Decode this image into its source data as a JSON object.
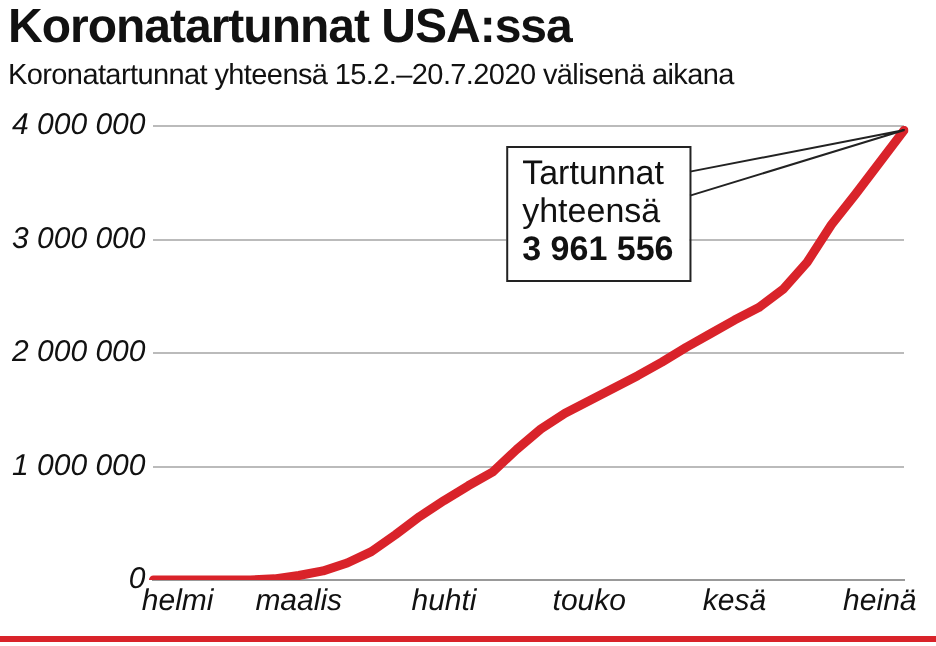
{
  "chart_data": {
    "type": "line",
    "title": "Koronatartunnat USA:ssa",
    "subtitle": "Koronatartunnat yhteensä 15.2.–20.7.2020 välisenä aikana",
    "categories": [
      null,
      "helmi",
      null,
      null,
      null,
      null,
      "maalis",
      null,
      null,
      null,
      null,
      null,
      "huhti",
      null,
      null,
      null,
      null,
      null,
      "touko",
      null,
      null,
      null,
      null,
      null,
      "kesä",
      null,
      null,
      null,
      null,
      null,
      "heinä",
      null
    ],
    "series": [
      {
        "color": "#d9232a",
        "values": [
          0,
          0,
          0,
          0,
          0,
          10000,
          40000,
          80000,
          150000,
          250000,
          400000,
          560000,
          700000,
          830000,
          950000,
          1150000,
          1330000,
          1470000,
          1580000,
          1690000,
          1800000,
          1920000,
          2050000,
          2170000,
          2290000,
          2400000,
          2560000,
          2800000,
          3130000,
          3400000,
          3680000,
          3961556
        ]
      }
    ],
    "ylim": [
      0,
      4000000
    ],
    "yticks": [
      0,
      {
        "value": 1000000,
        "label": "1 000 000"
      },
      {
        "value": 2000000,
        "label": "2 000 000"
      },
      {
        "value": 3000000,
        "label": "3 000 000"
      },
      {
        "value": 4000000,
        "label": "4 000 000"
      }
    ],
    "grid": "y",
    "legend": false,
    "marker": "none",
    "line_style": "solid",
    "annotations": [
      "Tartunnat\nyhteensä\n3 961 556"
    ]
  }
}
